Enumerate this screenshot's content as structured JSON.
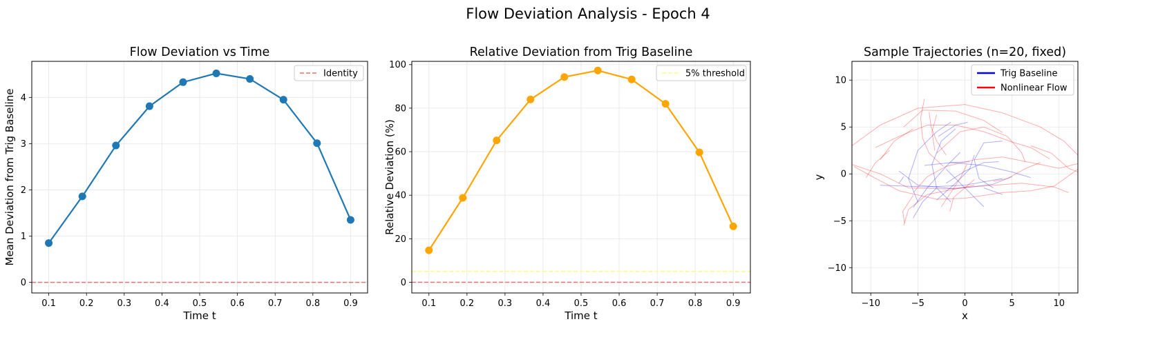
{
  "figure": {
    "suptitle": "Flow Deviation Analysis - Epoch 4"
  },
  "chart_data": [
    {
      "type": "line",
      "title": "Flow Deviation vs Time",
      "xlabel": "Time t",
      "ylabel": "Mean Deviation from Trig Baseline",
      "xlim": [
        0.055,
        0.945
      ],
      "ylim": [
        -0.23,
        4.78
      ],
      "xticks": [
        0.1,
        0.2,
        0.3,
        0.4,
        0.5,
        0.6,
        0.7,
        0.8,
        0.9
      ],
      "yticks": [
        0,
        1,
        2,
        3,
        4
      ],
      "grid": true,
      "legend_position": "top-right",
      "series": [
        {
          "values_x": [
            0.1,
            0.189,
            0.278,
            0.367,
            0.456,
            0.544,
            0.633,
            0.722,
            0.811,
            0.9
          ],
          "values_y": [
            0.85,
            1.86,
            2.96,
            3.81,
            4.33,
            4.52,
            4.4,
            3.95,
            3.01,
            1.35
          ],
          "color": "#1f77b4",
          "marker": "circle"
        }
      ],
      "reference_lines": [
        {
          "label": "Identity",
          "y": 0,
          "color": "#ff6b6b",
          "style": "dashed"
        }
      ]
    },
    {
      "type": "line",
      "title": "Relative Deviation from Trig Baseline",
      "xlabel": "Time t",
      "ylabel": "Relative Deviation (%)",
      "xlim": [
        0.055,
        0.945
      ],
      "ylim": [
        -4.9,
        101.5
      ],
      "xticks": [
        0.1,
        0.2,
        0.3,
        0.4,
        0.5,
        0.6,
        0.7,
        0.8,
        0.9
      ],
      "yticks": [
        0,
        20,
        40,
        60,
        80,
        100
      ],
      "grid": true,
      "legend_position": "top-right",
      "series": [
        {
          "values_x": [
            0.1,
            0.189,
            0.278,
            0.367,
            0.456,
            0.544,
            0.633,
            0.722,
            0.811,
            0.9
          ],
          "values_y": [
            14.7,
            38.8,
            65.2,
            84.0,
            94.3,
            97.3,
            93.2,
            82.0,
            59.7,
            25.7
          ],
          "color": "#ffa500",
          "marker": "circle"
        }
      ],
      "reference_lines": [
        {
          "label": "5% threshold",
          "y": 5,
          "color": "#ffff80",
          "style": "dashed"
        },
        {
          "y": 0,
          "color": "#ff6b6b",
          "style": "dashed"
        }
      ]
    },
    {
      "type": "line",
      "title": "Sample Trajectories (n=20, fixed)",
      "xlabel": "x",
      "ylabel": "y",
      "xlim": [
        -12,
        12
      ],
      "ylim": [
        -12.7,
        12
      ],
      "xticks": [
        -10,
        -5,
        0,
        5,
        10
      ],
      "yticks": [
        -10,
        -5,
        0,
        5,
        10
      ],
      "grid": true,
      "legend_position": "top-right",
      "legend": [
        {
          "label": "Trig Baseline",
          "color": "#0000ff"
        },
        {
          "label": "Nonlinear Flow",
          "color": "#ff0000"
        }
      ],
      "series": [
        {
          "name": "Trig Baseline",
          "color": "#0000ff",
          "paths": [
            [
              [
                -7,
                0.3
              ],
              [
                -5,
                -1.2
              ],
              [
                -1,
                -1.6
              ],
              [
                3,
                -1.1
              ],
              [
                5,
                -0.3
              ]
            ],
            [
              [
                -9,
                -1.2
              ],
              [
                -4,
                -1.4
              ],
              [
                0,
                -1.2
              ],
              [
                4,
                -0.5
              ]
            ],
            [
              [
                -5.5,
                -3.6
              ],
              [
                -4,
                -1.5
              ],
              [
                -2,
                0.8
              ],
              [
                -0.5,
                2.3
              ]
            ],
            [
              [
                -4.3,
                0.9
              ],
              [
                -1.5,
                1.2
              ],
              [
                2,
                0.9
              ],
              [
                5,
                0.2
              ],
              [
                7,
                -0.4
              ]
            ],
            [
              [
                -3,
                -2.8
              ],
              [
                -1,
                -1
              ],
              [
                0.5,
                0.5
              ],
              [
                1,
                2
              ]
            ],
            [
              [
                -2,
                -1
              ],
              [
                0,
                0.3
              ],
              [
                2,
                1.2
              ],
              [
                3.6,
                1.3
              ]
            ],
            [
              [
                -5,
                -3
              ],
              [
                -6,
                -0.5
              ],
              [
                -5,
                2.5
              ],
              [
                -3,
                4.5
              ],
              [
                -1.5,
                5.5
              ]
            ],
            [
              [
                -2,
                0.5
              ],
              [
                0,
                -1.5
              ],
              [
                2,
                -3.5
              ]
            ],
            [
              [
                -1,
                4.8
              ],
              [
                -2.5,
                3.5
              ],
              [
                -3.5,
                1
              ],
              [
                -3,
                -1.5
              ],
              [
                -1.5,
                -3
              ]
            ],
            [
              [
                4,
                3.5
              ],
              [
                2,
                3.3
              ],
              [
                1,
                1.5
              ],
              [
                1.5,
                -0.5
              ],
              [
                3,
                -1.5
              ]
            ],
            [
              [
                -5.5,
                -4.7
              ],
              [
                -4.5,
                -3
              ],
              [
                -3,
                -1.5
              ]
            ],
            [
              [
                0.3,
                5.5
              ],
              [
                -1,
                5.2
              ],
              [
                -2.8,
                4
              ]
            ],
            [
              [
                -1.5,
                1.2
              ],
              [
                0.5,
                1.3
              ]
            ],
            [
              [
                2,
                -1.5
              ],
              [
                4,
                -2.2
              ]
            ],
            [
              [
                -7,
                -1
              ],
              [
                -6.5,
                -0.3
              ]
            ]
          ]
        },
        {
          "name": "Nonlinear Flow",
          "color": "#ff0000",
          "paths": [
            [
              [
                -12,
                3
              ],
              [
                -9,
                5.2
              ],
              [
                -5,
                7
              ],
              [
                0,
                7.4
              ],
              [
                4,
                6.5
              ],
              [
                8,
                5
              ],
              [
                10.5,
                3.5
              ],
              [
                12,
                2
              ]
            ],
            [
              [
                -12,
                1
              ],
              [
                -9,
                0
              ],
              [
                -6,
                -1.5
              ],
              [
                -2,
                -1.6
              ],
              [
                2,
                -1.3
              ],
              [
                6,
                -1
              ],
              [
                9.5,
                -1.4
              ],
              [
                11,
                -2
              ]
            ],
            [
              [
                -6.5,
                -5.5
              ],
              [
                -6,
                -3.8
              ],
              [
                -4,
                -2.2
              ],
              [
                -1,
                -1.6
              ],
              [
                1,
                -1.2
              ]
            ],
            [
              [
                -9.5,
                2.8
              ],
              [
                -7,
                4
              ],
              [
                -4,
                5.2
              ],
              [
                -1,
                5.2
              ],
              [
                2,
                4.5
              ],
              [
                5,
                3.4
              ],
              [
                7,
                2.8
              ],
              [
                9,
                1.6
              ]
            ],
            [
              [
                -11.8,
                0.8
              ],
              [
                -10,
                -0.2
              ],
              [
                -7,
                -1.8
              ],
              [
                -3,
                -2.7
              ],
              [
                0,
                -2.6
              ],
              [
                4,
                -2
              ],
              [
                7,
                -1.8
              ],
              [
                9.5,
                -1.3
              ],
              [
                12,
                0.5
              ]
            ],
            [
              [
                -6.4,
                -5.3
              ],
              [
                -6.6,
                -4
              ],
              [
                -5.5,
                -2.3
              ]
            ],
            [
              [
                -4.3,
                8
              ],
              [
                -4.7,
                6
              ],
              [
                -4.5,
                3.8
              ],
              [
                -3.8,
                2.2
              ],
              [
                -2.3,
                0.8
              ]
            ],
            [
              [
                -3.8,
                6.6
              ],
              [
                -3.6,
                5
              ],
              [
                -3,
                3.5
              ],
              [
                -2,
                2
              ]
            ],
            [
              [
                -3,
                2.2
              ],
              [
                -0.5,
                4.5
              ],
              [
                2,
                5
              ],
              [
                4.5,
                4
              ],
              [
                6,
                2.3
              ],
              [
                6.4,
                1.3
              ]
            ],
            [
              [
                -5.5,
                -2
              ],
              [
                -4,
                -0.3
              ],
              [
                -2,
                0.8
              ],
              [
                1,
                1.5
              ],
              [
                4,
                1.8
              ],
              [
                7,
                1.2
              ],
              [
                10,
                0.6
              ],
              [
                12,
                1.1
              ]
            ],
            [
              [
                -2.5,
                -3.5
              ],
              [
                -1.5,
                -2
              ],
              [
                -0.5,
                -0.5
              ],
              [
                0.2,
                1
              ]
            ],
            [
              [
                -6.5,
                5
              ],
              [
                -4.5,
                6.8
              ],
              [
                -1,
                6.7
              ],
              [
                2,
                5.7
              ],
              [
                4,
                4.4
              ]
            ],
            [
              [
                7,
                3
              ],
              [
                9.2,
                2.2
              ],
              [
                11,
                0.6
              ],
              [
                12,
                0.2
              ]
            ],
            [
              [
                -10.5,
                -0.4
              ],
              [
                -9.5,
                1.2
              ],
              [
                -8,
                2.5
              ]
            ],
            [
              [
                -3.2,
                2.5
              ],
              [
                -3.5,
                4.5
              ],
              [
                -3,
                6.3
              ]
            ],
            [
              [
                -1.6,
                -4
              ],
              [
                -1.2,
                -2.5
              ],
              [
                0,
                -1.5
              ],
              [
                1,
                -0.6
              ]
            ],
            [
              [
                3,
                -0.8
              ],
              [
                4.5,
                -0.5
              ],
              [
                6.5,
                0.6
              ],
              [
                8,
                1.2
              ]
            ],
            [
              [
                -9,
                1.5
              ],
              [
                -7.5,
                3.5
              ],
              [
                -5.5,
                4.8
              ]
            ]
          ]
        }
      ]
    }
  ]
}
